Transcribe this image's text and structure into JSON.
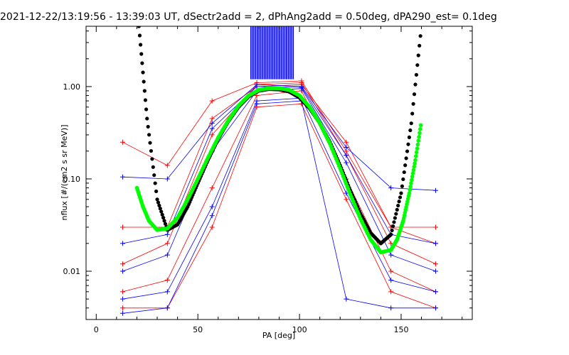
{
  "chart_data": {
    "type": "line",
    "title": "2021-12-22/13:19:56 - 13:39:03 UT, dSectr2add = 2, dPhAng2add = 0.50deg, dPA290_est=   0.1deg",
    "xlabel": "PA [deg]",
    "ylabel": "nflux [#/(cm2 s sr MeV)]",
    "xlim": [
      -5,
      185
    ],
    "ylim": [
      0.003,
      4.5
    ],
    "yscale": "log",
    "x_ticks": [
      0,
      50,
      100,
      150
    ],
    "x_tick_labels": [
      "0",
      "50",
      "100",
      "150"
    ],
    "y_ticks": [
      0.01,
      0.1,
      1.0
    ],
    "y_tick_labels": [
      "0.01",
      "0.10",
      "1.00"
    ],
    "grid": false,
    "colors": {
      "red_series": "#ff0000",
      "blue_series": "#0000ff",
      "black_fit": "#000000",
      "green_fit": "#00ff00"
    },
    "pa_nodes": [
      13,
      35,
      57,
      79,
      101,
      123,
      145,
      167
    ],
    "series": [
      {
        "color": "red",
        "values": [
          0.012,
          0.02,
          0.3,
          1.05,
          1.1,
          0.18,
          0.02,
          0.012
        ]
      },
      {
        "color": "red",
        "values": [
          0.006,
          0.008,
          0.08,
          0.8,
          0.9,
          0.1,
          0.01,
          0.006
        ]
      },
      {
        "color": "red",
        "values": [
          0.25,
          0.14,
          0.7,
          1.1,
          1.15,
          0.2,
          0.03,
          0.02
        ]
      },
      {
        "color": "red",
        "values": [
          0.004,
          0.004,
          0.03,
          0.6,
          0.65,
          0.06,
          0.006,
          0.004
        ]
      },
      {
        "color": "red",
        "values": [
          0.03,
          0.03,
          0.45,
          1.0,
          1.05,
          0.25,
          0.03,
          0.03
        ]
      },
      {
        "color": "blue",
        "values": [
          0.01,
          0.015,
          0.2,
          0.9,
          0.95,
          0.15,
          0.015,
          0.01
        ]
      },
      {
        "color": "blue",
        "values": [
          0.105,
          0.1,
          0.4,
          1.05,
          1.0,
          0.22,
          0.08,
          0.075
        ]
      },
      {
        "color": "blue",
        "values": [
          0.005,
          0.006,
          0.05,
          0.7,
          0.75,
          0.07,
          0.008,
          0.006
        ]
      },
      {
        "color": "blue",
        "values": [
          0.02,
          0.025,
          0.35,
          1.0,
          0.98,
          0.18,
          0.025,
          0.02
        ]
      },
      {
        "color": "blue",
        "values": [
          0.0035,
          0.004,
          0.04,
          0.65,
          0.7,
          0.005,
          0.004,
          0.004
        ]
      }
    ],
    "saturated_band": {
      "color": "blue",
      "x_range": [
        76,
        97
      ],
      "y_from": 1.2,
      "y_to": 4.5
    },
    "black_fit": {
      "x": [
        21,
        25,
        30,
        35,
        40,
        45,
        50,
        55,
        60,
        65,
        70,
        75,
        80,
        85,
        90,
        95,
        100,
        105,
        110,
        115,
        120,
        125,
        130,
        135,
        140,
        145,
        150,
        155,
        160
      ],
      "y": [
        4.5,
        0.45,
        0.06,
        0.028,
        0.032,
        0.05,
        0.09,
        0.16,
        0.27,
        0.42,
        0.6,
        0.78,
        0.9,
        0.94,
        0.93,
        0.88,
        0.76,
        0.58,
        0.4,
        0.25,
        0.14,
        0.075,
        0.042,
        0.026,
        0.02,
        0.025,
        0.07,
        0.4,
        4.5
      ]
    },
    "green_fit": {
      "x": [
        20,
        23,
        26,
        30,
        35,
        40,
        45,
        50,
        55,
        60,
        65,
        70,
        75,
        80,
        85,
        90,
        95,
        100,
        105,
        110,
        115,
        120,
        125,
        130,
        135,
        140,
        145,
        148,
        151,
        154,
        157,
        160
      ],
      "y": [
        0.08,
        0.05,
        0.035,
        0.028,
        0.029,
        0.038,
        0.06,
        0.1,
        0.17,
        0.28,
        0.43,
        0.62,
        0.8,
        0.92,
        0.96,
        0.96,
        0.92,
        0.8,
        0.6,
        0.4,
        0.24,
        0.13,
        0.068,
        0.037,
        0.022,
        0.016,
        0.017,
        0.022,
        0.035,
        0.07,
        0.16,
        0.42
      ]
    }
  }
}
